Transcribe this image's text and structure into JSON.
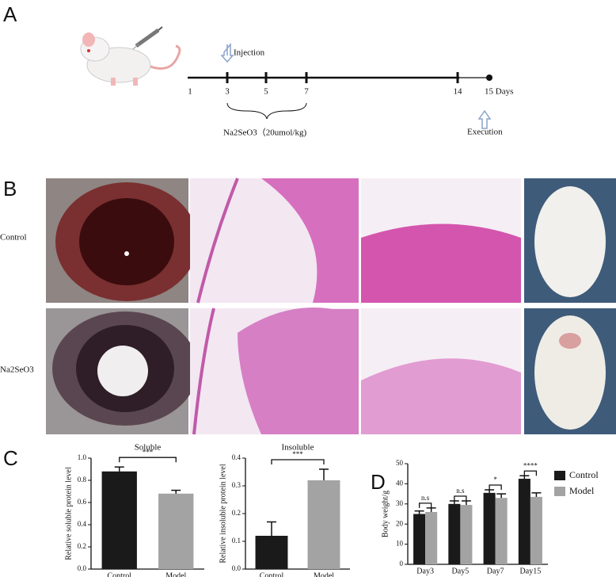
{
  "panel_labels": [
    "A",
    "B",
    "C",
    "D"
  ],
  "timeline": {
    "ticks": [
      "1",
      "3",
      "5",
      "7",
      "14"
    ],
    "end_label": "15 Days",
    "injection": "Injection",
    "dose": "Na2SeO3（20umol/kg)",
    "execution": "Execution"
  },
  "photo_rows": [
    "Control",
    "Na2SeO3"
  ],
  "chart_data": [
    {
      "type": "bar",
      "title": "Soluble",
      "y_label": "Relative soluble protein level",
      "categories": [
        "Control",
        "Model"
      ],
      "values": [
        0.88,
        0.68
      ],
      "errors": [
        0.04,
        0.03
      ],
      "colors": [
        "#1a1a1a",
        "#a3a3a3"
      ],
      "ylim": [
        0,
        1
      ],
      "yticks": [
        {
          "value": 0,
          "label": "0.0"
        },
        0.2,
        0.4,
        0.6,
        0.8,
        {
          "value": 1,
          "label": "1.0"
        }
      ],
      "significance": "***"
    },
    {
      "type": "bar",
      "title": "Insoluble",
      "y_label": "Relative insoluble protein level",
      "categories": [
        "Control",
        "Model"
      ],
      "values": [
        0.12,
        0.32
      ],
      "errors": [
        0.05,
        0.04
      ],
      "colors": [
        "#1a1a1a",
        "#a3a3a3"
      ],
      "ylim": [
        0,
        0.4
      ],
      "yticks": [
        {
          "value": 0,
          "label": "0.0"
        },
        0.1,
        0.2,
        0.3,
        0.4
      ],
      "significance": "***"
    },
    {
      "type": "grouped_bar",
      "y_label": "Body weight/g",
      "categories": [
        "Day3",
        "Day5",
        "Day7",
        "Day15"
      ],
      "series": [
        {
          "name": "Control",
          "color": "#1a1a1a",
          "values": [
            25,
            30,
            35.5,
            42.5
          ],
          "errors": [
            1.5,
            1.5,
            1.5,
            1.5
          ]
        },
        {
          "name": "Model",
          "color": "#a3a3a3",
          "values": [
            26,
            29.5,
            33,
            33.5
          ],
          "errors": [
            2,
            2,
            2,
            2
          ]
        }
      ],
      "ylim": [
        0,
        50
      ],
      "yticks": [
        0,
        10,
        20,
        30,
        40,
        50
      ],
      "annotations": [
        "n.s",
        "n.s",
        "*",
        "****"
      ],
      "legend": "top-right"
    }
  ]
}
